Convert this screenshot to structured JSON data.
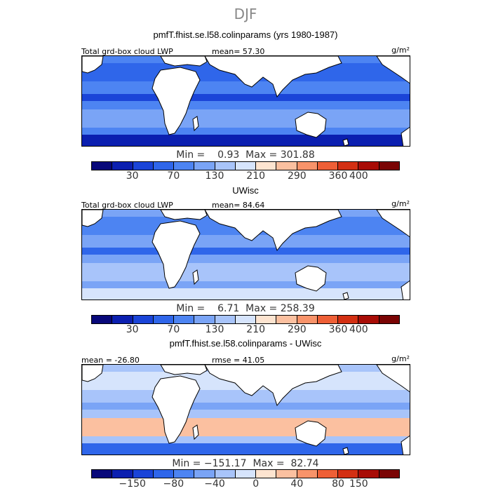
{
  "season": "DJF",
  "colorbar_colors": [
    "#08087a",
    "#0b1fb0",
    "#1a44d8",
    "#2f66ea",
    "#4d84f2",
    "#7aa4f6",
    "#a8c4fa",
    "#d6e4fc",
    "#fde4d0",
    "#fbc0a0",
    "#f8936a",
    "#ee5f36",
    "#d32f12",
    "#a80c06",
    "#7a0404"
  ],
  "land_color": "#ffffff",
  "panels": [
    {
      "title": "pmfT.fhist.se.l58.colinparams (yrs 1980-1987)",
      "header_left": "Total grd-box cloud LWP",
      "header_mid": "mean=  57.30",
      "units": "g/m²",
      "stats": "Min =    0.93  Max = 301.88",
      "tick_labels": [
        "30",
        "70",
        "130",
        "210",
        "290",
        "360",
        "400"
      ],
      "ocean_colors": [
        "#4d84f2",
        "#2f66ea",
        "#1a44d8",
        "#7aa4f6",
        "#0b1fb0"
      ]
    },
    {
      "title": "UWisc",
      "header_left": "Total grd-box cloud LWP",
      "header_mid": "mean=  84.64",
      "units": "g/m²",
      "stats": "Min =    6.71  Max = 258.39",
      "tick_labels": [
        "30",
        "70",
        "130",
        "210",
        "290",
        "360",
        "400"
      ],
      "ocean_colors": [
        "#7aa4f6",
        "#4d84f2",
        "#2f66ea",
        "#a8c4fa",
        "#d6e4fc"
      ]
    },
    {
      "title": "pmfT.fhist.se.l58.colinparams - UWisc",
      "header_left": "mean = -26.80",
      "header_mid": "rmse =   41.05",
      "units": "g/m²",
      "stats": "Min = −151.17  Max =  82.74",
      "tick_labels": [
        "−150",
        "−80",
        "−40",
        "0",
        "40",
        "80",
        "150"
      ],
      "ocean_colors": [
        "#a8c4fa",
        "#d6e4fc",
        "#7aa4f6",
        "#fbc0a0",
        "#2f66ea"
      ]
    }
  ]
}
